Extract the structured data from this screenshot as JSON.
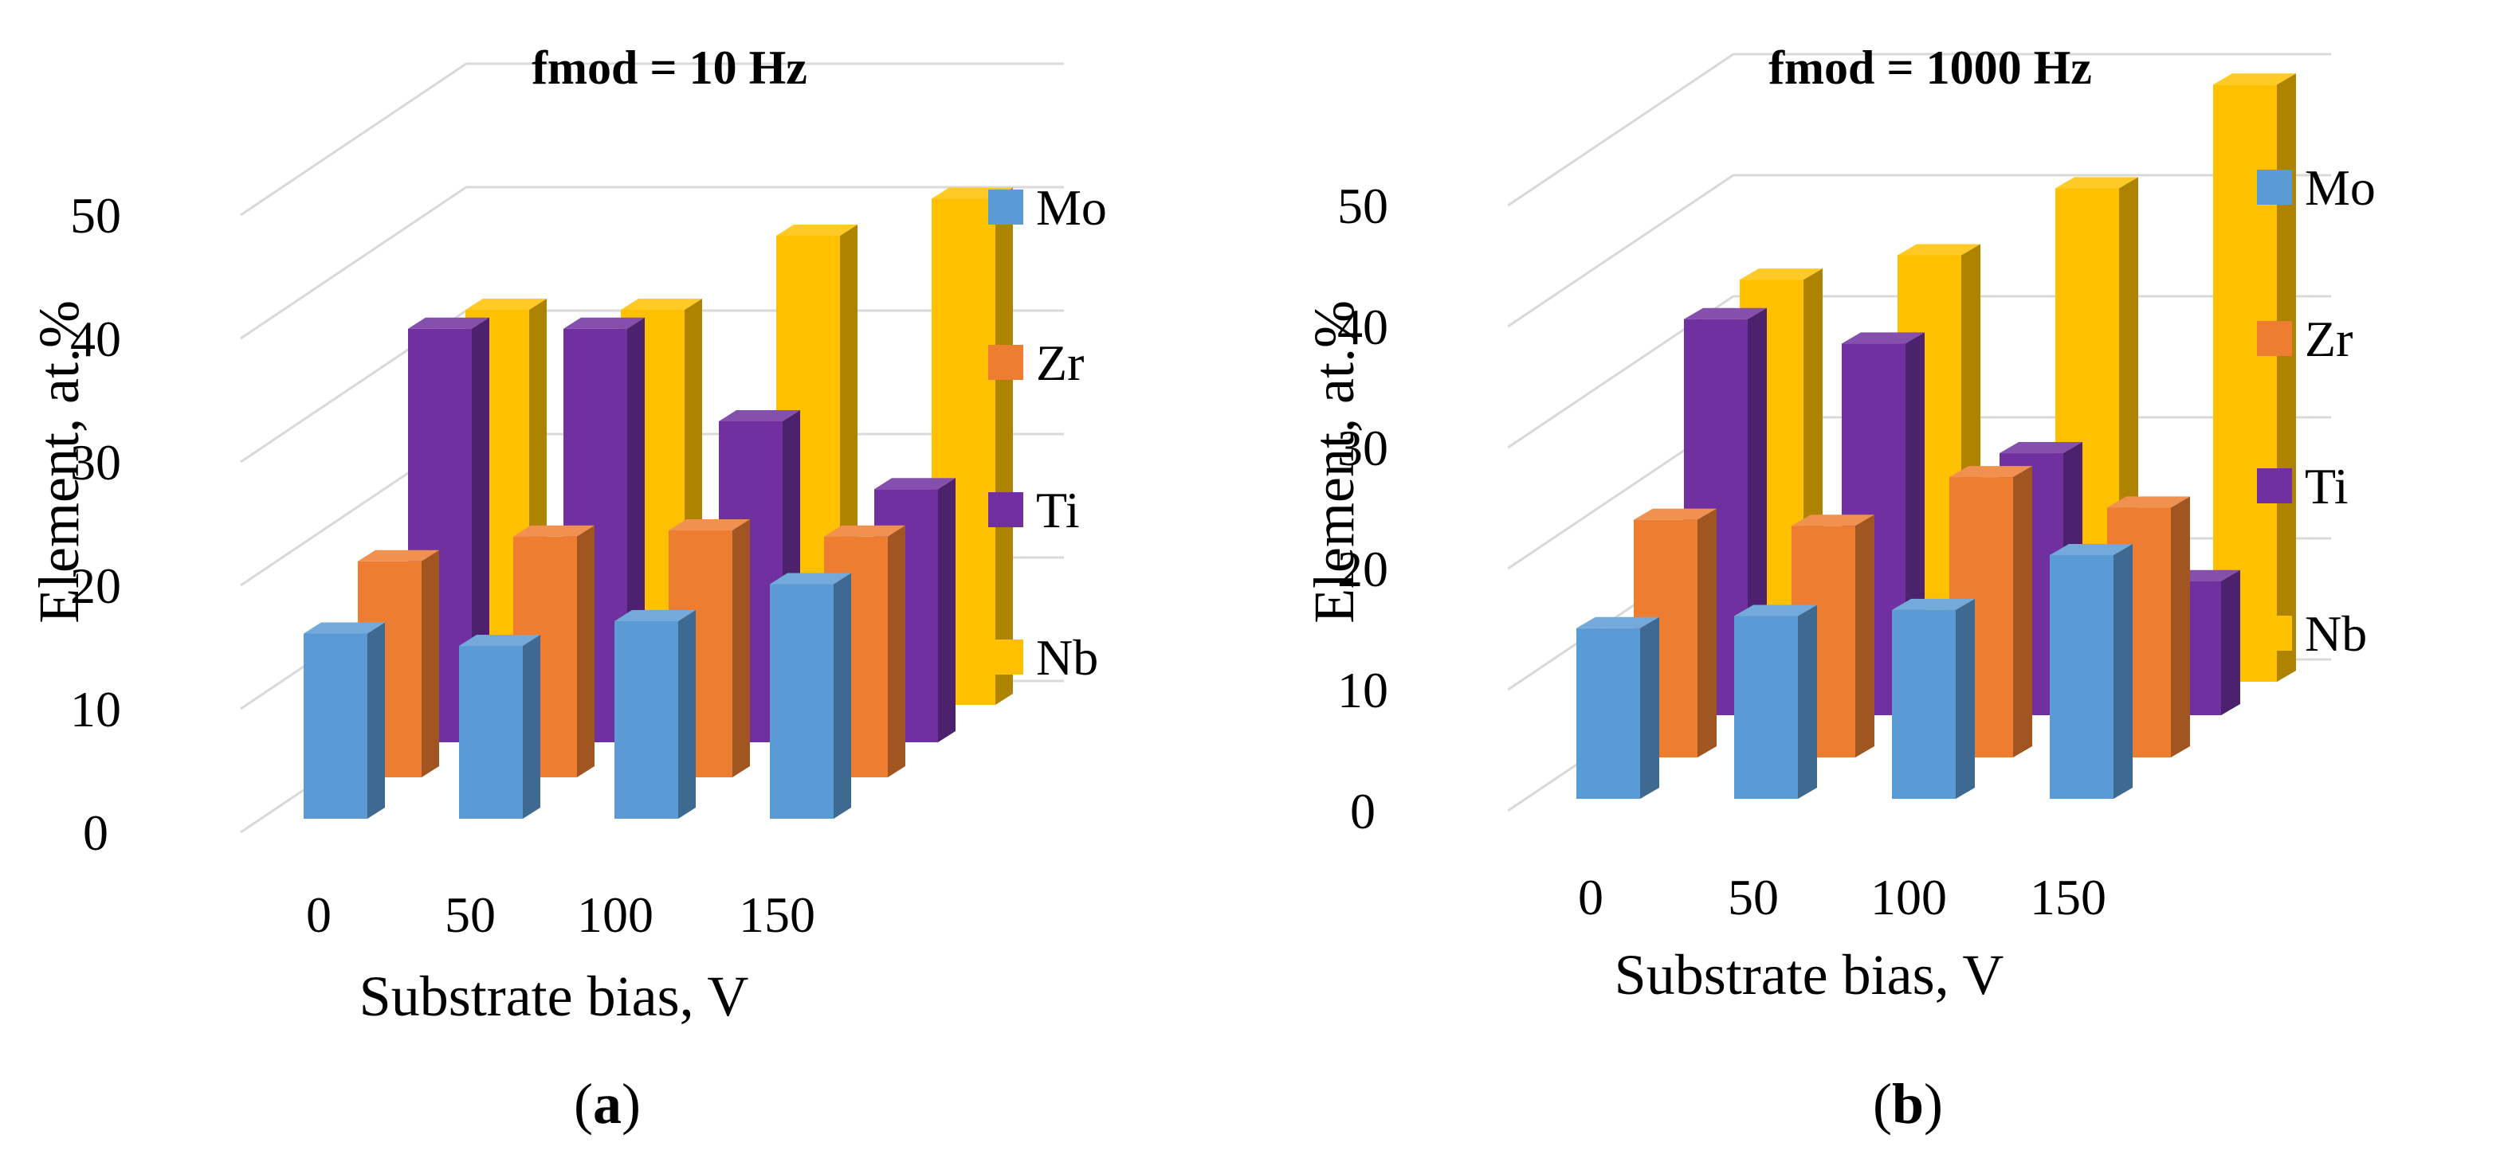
{
  "chart_data": [
    {
      "type": "bar",
      "title": "fmod = 10 Hz",
      "xlabel": "Substrate bias, V",
      "ylabel": "Element, at.%",
      "categories": [
        "0",
        "50",
        "100",
        "150"
      ],
      "yticks": [
        "0",
        "10",
        "20",
        "30",
        "40",
        "50"
      ],
      "ylim": [
        0,
        50
      ],
      "series": [
        {
          "name": "Mo",
          "values": [
            15,
            14,
            16,
            19
          ]
        },
        {
          "name": "Zr",
          "values": [
            17.5,
            19.5,
            20,
            19.5
          ]
        },
        {
          "name": "Ti",
          "values": [
            33.5,
            33.5,
            26,
            20.5
          ]
        },
        {
          "name": "Nb",
          "values": [
            32,
            32,
            38,
            41
          ]
        }
      ],
      "legend": "right",
      "caption_open": "(",
      "caption_label": "a",
      "caption_close": ")"
    },
    {
      "type": "bar",
      "title": "fmod = 1000 Hz",
      "xlabel": "Substrate bias, V",
      "ylabel": "Element, at.%",
      "categories": [
        "0",
        "50",
        "100",
        "150"
      ],
      "yticks": [
        "0",
        "10",
        "20",
        "30",
        "40",
        "50"
      ],
      "ylim": [
        0,
        50
      ],
      "series": [
        {
          "name": "Mo",
          "values": [
            14,
            15,
            15.5,
            20
          ]
        },
        {
          "name": "Zr",
          "values": [
            19.5,
            19,
            23,
            20.5
          ]
        },
        {
          "name": "Ti",
          "values": [
            32.5,
            30.5,
            21.5,
            11
          ]
        },
        {
          "name": "Nb",
          "values": [
            33,
            35,
            40.5,
            49
          ]
        }
      ],
      "legend": "right",
      "caption_open": "(",
      "caption_label": "b",
      "caption_close": ")"
    }
  ],
  "colors": {
    "Mo": "#5b9bd5",
    "Zr": "#ed7d31",
    "Ti": "#7030a0",
    "Nb": "#ffc000",
    "grid": "#d9d9d9"
  }
}
